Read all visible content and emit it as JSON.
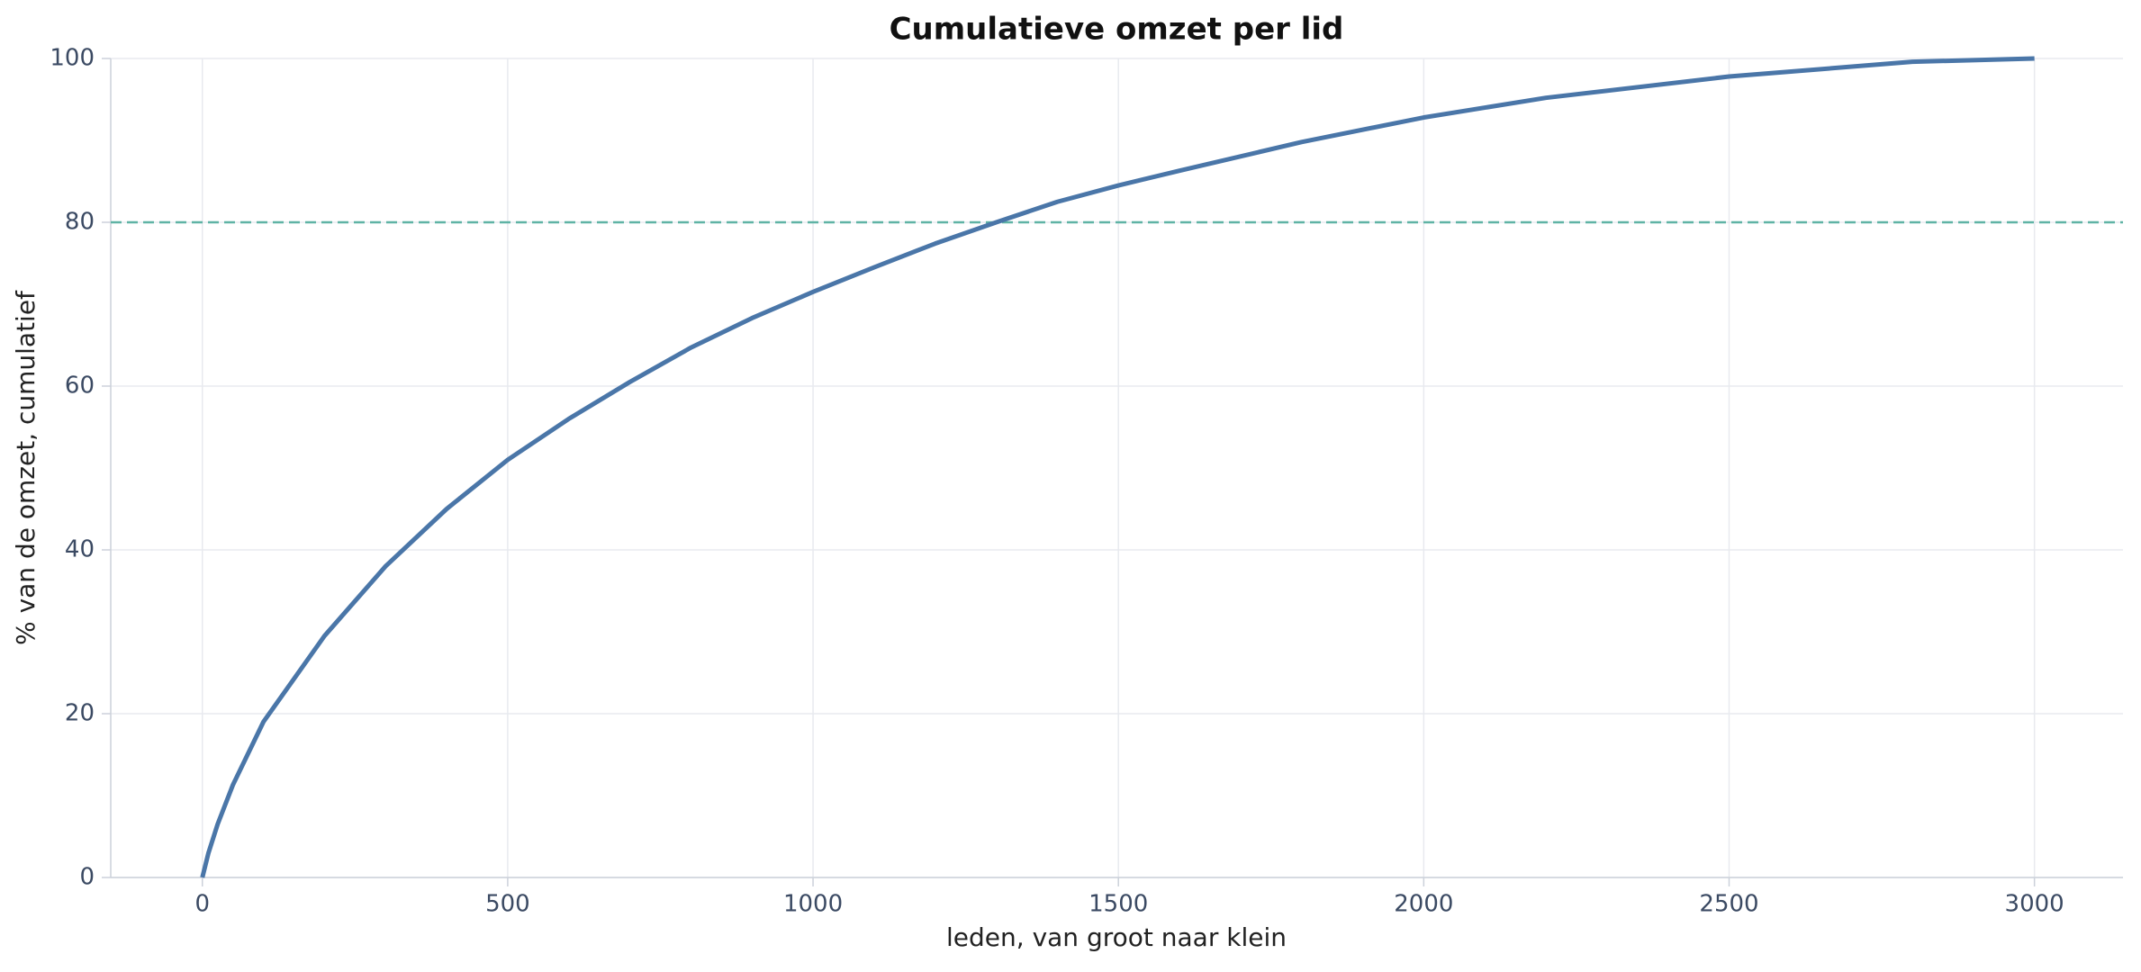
{
  "chart_data": {
    "type": "line",
    "title": "Cumulatieve omzet per lid",
    "xlabel": "leden, van groot naar klein",
    "ylabel": "% van de omzet, cumulatief",
    "x": [
      0,
      10,
      25,
      50,
      100,
      200,
      300,
      400,
      500,
      600,
      700,
      800,
      900,
      1000,
      1100,
      1200,
      1300,
      1400,
      1500,
      1600,
      1800,
      2000,
      2200,
      2500,
      2800,
      3000
    ],
    "series": [
      {
        "color": "#4a76a8",
        "values": [
          0,
          3,
          6.5,
          11.3,
          19,
          29.5,
          38,
          45,
          51,
          56,
          60.5,
          64.7,
          68.3,
          71.5,
          74.5,
          77.4,
          80,
          82.5,
          84.5,
          86.3,
          89.8,
          92.8,
          95.2,
          97.8,
          99.6,
          100
        ]
      }
    ],
    "hline": {
      "value": 80,
      "color": "#5fb3a5"
    },
    "xlim": [
      -150,
      3145
    ],
    "ylim": [
      0,
      100
    ],
    "xticks": [
      0,
      500,
      1000,
      1500,
      2000,
      2500,
      3000
    ],
    "yticks": [
      0,
      20,
      40,
      60,
      80,
      100
    ],
    "grid": true
  }
}
